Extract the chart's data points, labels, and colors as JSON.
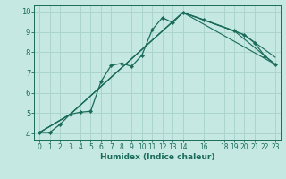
{
  "xlabel": "Humidex (Indice chaleur)",
  "background_color": "#c5e8e3",
  "grid_color": "#aad4cc",
  "line_color": "#1a6b5a",
  "xlim": [
    -0.5,
    23.5
  ],
  "ylim": [
    3.7,
    10.3
  ],
  "yticks": [
    4,
    5,
    6,
    7,
    8,
    9,
    10
  ],
  "xticks": [
    0,
    1,
    2,
    3,
    4,
    5,
    6,
    7,
    8,
    9,
    10,
    11,
    12,
    13,
    14,
    16,
    18,
    19,
    20,
    21,
    22,
    23
  ],
  "line1_x": [
    0,
    1,
    2,
    3,
    4,
    5,
    6,
    7,
    8,
    9,
    10,
    11,
    12,
    13,
    14,
    16,
    19,
    20,
    21,
    22,
    23
  ],
  "line1_y": [
    4.05,
    4.05,
    4.45,
    4.95,
    5.05,
    5.1,
    6.55,
    7.35,
    7.45,
    7.3,
    7.85,
    9.1,
    9.7,
    9.45,
    9.95,
    9.6,
    9.05,
    8.85,
    8.45,
    7.8,
    7.4
  ],
  "line2_x": [
    0,
    3,
    14,
    19,
    23
  ],
  "line2_y": [
    4.05,
    4.95,
    9.95,
    9.05,
    7.4
  ],
  "line3_x": [
    0,
    3,
    14,
    20,
    23
  ],
  "line3_y": [
    4.05,
    4.95,
    9.95,
    8.85,
    7.75
  ],
  "line4_x": [
    0,
    3,
    14,
    23
  ],
  "line4_y": [
    4.05,
    4.95,
    9.95,
    7.4
  ]
}
